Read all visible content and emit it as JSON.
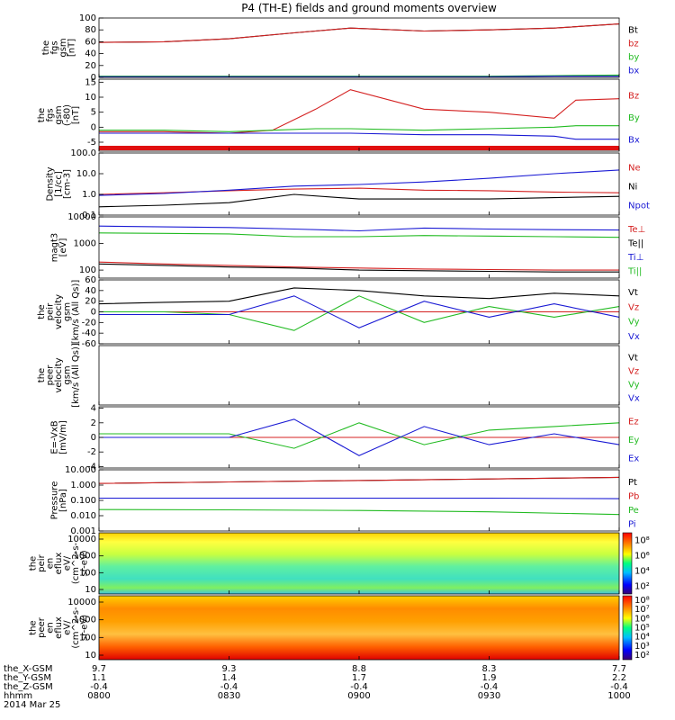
{
  "title": "P4 (TH-E) fields and ground moments overview",
  "panels": [
    {
      "id": "fgs",
      "type": "line",
      "ylabel": [
        "the",
        "fgs",
        "gsm",
        "[nT]"
      ],
      "yticks": [
        "0",
        "20",
        "40",
        "60",
        "80",
        "100"
      ],
      "ylim": [
        0,
        100
      ],
      "legend": [
        {
          "label": "Bt",
          "color": "#000000"
        },
        {
          "label": "bz",
          "color": "#d42020"
        },
        {
          "label": "by",
          "color": "#22bb22"
        },
        {
          "label": "bx",
          "color": "#1a1ad4"
        }
      ]
    },
    {
      "id": "fgs_zoom",
      "type": "line",
      "ylabel": [
        "the",
        "fgs",
        "gsm",
        "(-80)",
        "[nT]"
      ],
      "yticks": [
        "-5",
        "0",
        "5",
        "10",
        "15"
      ],
      "ylim": [
        -8,
        16
      ],
      "legend": [
        {
          "label": "Bz",
          "color": "#d42020"
        },
        {
          "label": "By",
          "color": "#22bb22"
        },
        {
          "label": "Bx",
          "color": "#1a1ad4"
        }
      ]
    },
    {
      "id": "density",
      "type": "line",
      "scale": "log",
      "ylabel": [
        "Density",
        "[1/cc]",
        "[cm-3]"
      ],
      "yticks": [
        "0.1",
        "1.0",
        "10.0",
        "100.0"
      ],
      "ylim": [
        0.1,
        100
      ],
      "legend": [
        {
          "label": "Ne",
          "color": "#d42020"
        },
        {
          "label": "Ni",
          "color": "#000000"
        },
        {
          "label": "Npot",
          "color": "#1a1ad4"
        }
      ]
    },
    {
      "id": "temperature",
      "type": "line",
      "scale": "log",
      "ylabel": [
        "magt3",
        "[eV]"
      ],
      "yticks": [
        "100",
        "1000",
        "10000"
      ],
      "ylim": [
        50,
        10000
      ],
      "legend": [
        {
          "label": "Te⊥",
          "color": "#d42020"
        },
        {
          "label": "Te||",
          "color": "#000000"
        },
        {
          "label": "Ti⊥",
          "color": "#1a1ad4"
        },
        {
          "label": "Ti||",
          "color": "#22bb22"
        }
      ]
    },
    {
      "id": "peir_velocity",
      "type": "line",
      "ylabel": [
        "the",
        "peir",
        "velocity",
        "gsm",
        "[km/s (All Qs)]"
      ],
      "yticks": [
        "-60",
        "-40",
        "-20",
        "0",
        "20",
        "40",
        "60"
      ],
      "ylim": [
        -60,
        60
      ],
      "legend": [
        {
          "label": "Vt",
          "color": "#000000"
        },
        {
          "label": "Vz",
          "color": "#d42020"
        },
        {
          "label": "Vy",
          "color": "#22bb22"
        },
        {
          "label": "Vx",
          "color": "#1a1ad4"
        }
      ]
    },
    {
      "id": "peer_velocity",
      "type": "line",
      "ylabel": [
        "the",
        "peer",
        "velocity",
        "gsm",
        "[km/s (All Qs)]"
      ],
      "yticks": [],
      "ylim": [
        -60,
        60
      ],
      "legend": [
        {
          "label": "Vt",
          "color": "#000000"
        },
        {
          "label": "Vz",
          "color": "#d42020"
        },
        {
          "label": "Vy",
          "color": "#22bb22"
        },
        {
          "label": "Vx",
          "color": "#1a1ad4"
        }
      ]
    },
    {
      "id": "efield",
      "type": "line",
      "ylabel": [
        "E=-VxB",
        "[mV/m]"
      ],
      "yticks": [
        "-4",
        "-2",
        "0",
        "2",
        "4"
      ],
      "ylim": [
        -4.2,
        4.2
      ],
      "legend": [
        {
          "label": "Ez",
          "color": "#d42020"
        },
        {
          "label": "Ey",
          "color": "#22bb22"
        },
        {
          "label": "Ex",
          "color": "#1a1ad4"
        }
      ]
    },
    {
      "id": "pressure",
      "type": "line",
      "scale": "log",
      "ylabel": [
        "Pressure",
        "[nPa]"
      ],
      "yticks": [
        "0.001",
        "0.010",
        "0.100",
        "1.000",
        "10.000"
      ],
      "ylim": [
        0.001,
        10
      ],
      "legend": [
        {
          "label": "Pt",
          "color": "#000000"
        },
        {
          "label": "Pb",
          "color": "#d42020"
        },
        {
          "label": "Pe",
          "color": "#22bb22"
        },
        {
          "label": "Pi",
          "color": "#1a1ad4"
        }
      ]
    },
    {
      "id": "peir_eflux",
      "type": "heatmap",
      "ylabel": [
        "the",
        "peir",
        "en",
        "eflux",
        "eV/",
        "(cm^2-s-",
        "sr-eV)"
      ],
      "yticks": [
        "10",
        "100",
        "1000",
        "10000"
      ],
      "colorbar": [
        "10²",
        "10⁴",
        "10⁶",
        "10⁸"
      ]
    },
    {
      "id": "peer_eflux",
      "type": "heatmap",
      "ylabel": [
        "the",
        "peer",
        "en",
        "eflux",
        "eV/",
        "(cm^2-s-",
        "sr-eV)"
      ],
      "yticks": [
        "10",
        "100",
        "1000",
        "10000"
      ],
      "colorbar": [
        "10²",
        "10³",
        "10⁴",
        "10⁵",
        "10⁶",
        "10⁷",
        "10⁸"
      ]
    }
  ],
  "footer": {
    "rows": [
      {
        "label": "the_X-GSM",
        "values": [
          "9.7",
          "9.3",
          "8.8",
          "8.3",
          "7.7"
        ]
      },
      {
        "label": "the_Y-GSM",
        "values": [
          "1.1",
          "1.4",
          "1.7",
          "1.9",
          "2.2"
        ]
      },
      {
        "label": "the_Z-GSM",
        "values": [
          "-0.4",
          "-0.4",
          "-0.4",
          "-0.4",
          "-0.4"
        ]
      },
      {
        "label": "hhmm",
        "values": [
          "0800",
          "0830",
          "0900",
          "0930",
          "1000"
        ]
      }
    ],
    "date": "2014 Mar 25"
  },
  "chart_data": {
    "type": "line",
    "title": "P4 (TH-E) fields and ground moments overview",
    "x_label": "hhmm",
    "x_ticks": [
      "0800",
      "0830",
      "0900",
      "0930",
      "1000"
    ],
    "x_range": [
      "0800",
      "1000"
    ],
    "panels": [
      {
        "name": "fgs",
        "ylim": [
          0,
          100
        ],
        "x": [
          "0800",
          "0815",
          "0830",
          "0845",
          "0858",
          "0915",
          "0930",
          "0945",
          "1000"
        ],
        "series": [
          {
            "name": "Bt",
            "values": [
              59,
              60,
              65,
              75,
              83,
              78,
              80,
              83,
              90
            ]
          },
          {
            "name": "bz",
            "values": [
              59,
              60,
              65,
              75,
              83,
              78,
              80,
              83,
              90
            ]
          },
          {
            "name": "by",
            "values": [
              2,
              2,
              2,
              2,
              2,
              2,
              2,
              3,
              4
            ]
          },
          {
            "name": "bx",
            "values": [
              1,
              1,
              1,
              1,
              1,
              1,
              1,
              2,
              2
            ]
          }
        ]
      },
      {
        "name": "fgs_zoom",
        "ylim": [
          -8,
          16
        ],
        "x": [
          "0800",
          "0815",
          "0830",
          "0840",
          "0850",
          "0858",
          "0915",
          "0930",
          "0945",
          "0950",
          "1000"
        ],
        "series": [
          {
            "name": "Bz",
            "values": [
              -1.5,
              -1.5,
              -2,
              -1,
              6,
              12.5,
              6,
              5,
              3,
              9,
              9.5
            ]
          },
          {
            "name": "By",
            "values": [
              -1,
              -1,
              -1.5,
              -1,
              -0.5,
              -0.5,
              -1,
              -0.5,
              0,
              0.5,
              0.5
            ]
          },
          {
            "name": "Bx",
            "values": [
              -2,
              -2,
              -2,
              -2,
              -2,
              -2,
              -2.5,
              -2.5,
              -3,
              -4,
              -4
            ]
          }
        ]
      },
      {
        "name": "density",
        "ylim": [
          0.1,
          100
        ],
        "x": [
          "0800",
          "0815",
          "0830",
          "0845",
          "0900",
          "0915",
          "0930",
          "0945",
          "1000"
        ],
        "series": [
          {
            "name": "Ne",
            "values": [
              1.0,
              1.2,
              1.5,
              1.8,
              2.0,
              1.6,
              1.5,
              1.3,
              1.2
            ]
          },
          {
            "name": "Ni",
            "values": [
              0.25,
              0.3,
              0.4,
              1.0,
              0.6,
              0.6,
              0.6,
              0.7,
              0.8
            ]
          },
          {
            "name": "Npot",
            "values": [
              0.9,
              1.1,
              1.6,
              2.5,
              3.0,
              4.0,
              6.0,
              10.0,
              15.0
            ]
          }
        ]
      },
      {
        "name": "temperature",
        "ylim": [
          50,
          10000
        ],
        "x": [
          "0800",
          "0815",
          "0830",
          "0845",
          "0900",
          "0915",
          "0930",
          "0945",
          "1000"
        ],
        "series": [
          {
            "name": "Ti⊥",
            "values": [
              4500,
              4200,
              4000,
              3500,
              3000,
              3800,
              3500,
              3300,
              3200
            ]
          },
          {
            "name": "Ti||",
            "values": [
              2500,
              2400,
              2300,
              1800,
              1800,
              2000,
              1900,
              1800,
              1700
            ]
          },
          {
            "name": "Te⊥",
            "values": [
              200,
              170,
              150,
              130,
              120,
              110,
              105,
              100,
              100
            ]
          },
          {
            "name": "Te||",
            "values": [
              170,
              150,
              130,
              120,
              100,
              95,
              90,
              85,
              85
            ]
          }
        ]
      },
      {
        "name": "peir_velocity",
        "ylim": [
          -60,
          60
        ],
        "x": [
          "0800",
          "0815",
          "0830",
          "0845",
          "0900",
          "0915",
          "0930",
          "0945",
          "1000"
        ],
        "series": [
          {
            "name": "Vt",
            "values": [
              15,
              18,
              20,
              45,
              40,
              30,
              25,
              35,
              30
            ]
          },
          {
            "name": "Vz",
            "values": [
              0,
              0,
              0,
              0,
              0,
              0,
              0,
              0,
              0
            ]
          },
          {
            "name": "Vy",
            "values": [
              0,
              0,
              -5,
              -35,
              30,
              -20,
              10,
              -10,
              10
            ]
          },
          {
            "name": "Vx",
            "values": [
              -5,
              -5,
              -5,
              30,
              -30,
              20,
              -10,
              15,
              -10
            ]
          }
        ]
      },
      {
        "name": "efield",
        "ylim": [
          -4.2,
          4.2
        ],
        "x": [
          "0800",
          "0815",
          "0830",
          "0845",
          "0900",
          "0915",
          "0930",
          "0945",
          "1000"
        ],
        "series": [
          {
            "name": "Ez",
            "values": [
              0,
              0,
              0,
              0,
              0,
              0,
              0,
              0,
              0
            ]
          },
          {
            "name": "Ey",
            "values": [
              0.5,
              0.5,
              0.5,
              -1.5,
              2.0,
              -1.0,
              1.0,
              1.5,
              2.0
            ]
          },
          {
            "name": "Ex",
            "values": [
              0,
              0,
              0,
              2.5,
              -2.5,
              1.5,
              -1.0,
              0.5,
              -1.0
            ]
          }
        ]
      },
      {
        "name": "pressure",
        "ylim": [
          0.001,
          10
        ],
        "x": [
          "0800",
          "0830",
          "0900",
          "0930",
          "1000"
        ],
        "series": [
          {
            "name": "Pt",
            "values": [
              1.3,
              1.6,
              2.0,
              2.5,
              3.2
            ]
          },
          {
            "name": "Pb",
            "values": [
              1.3,
              1.6,
              2.0,
              2.5,
              3.2
            ]
          },
          {
            "name": "Pe",
            "values": [
              0.025,
              0.024,
              0.022,
              0.018,
              0.012
            ]
          },
          {
            "name": "Pi",
            "values": [
              0.14,
              0.14,
              0.14,
              0.14,
              0.13
            ]
          }
        ]
      }
    ]
  }
}
